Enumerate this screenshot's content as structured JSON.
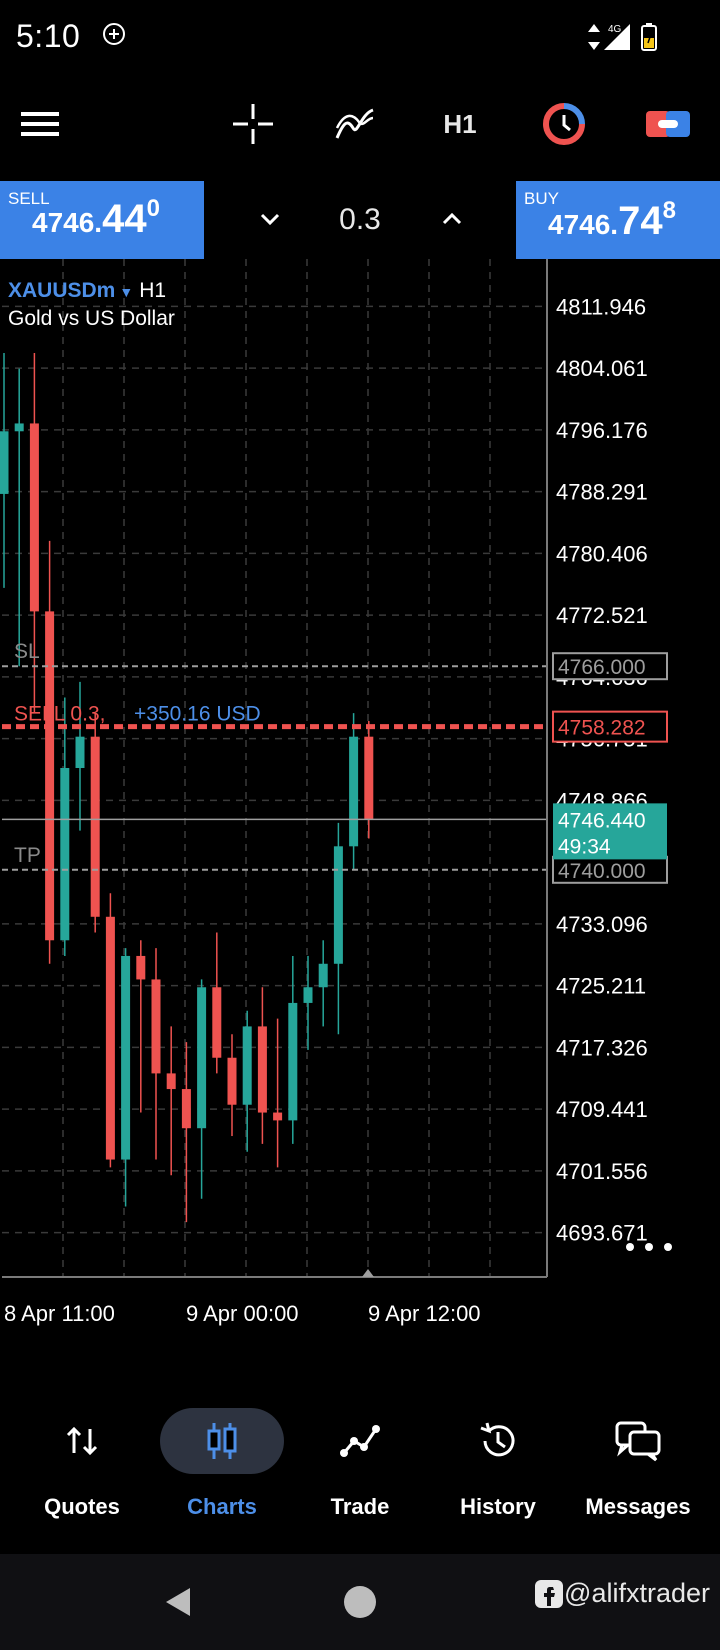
{
  "status": {
    "time": "5:10",
    "network": "4G"
  },
  "toolbar": {
    "timeframe": "H1",
    "icons": [
      "menu-icon",
      "crosshair-icon",
      "indicators-icon",
      "timeframe-button",
      "objects-icon",
      "trade-toggle-icon"
    ]
  },
  "trade": {
    "sell_label": "SELL",
    "sell_small": "4746.",
    "sell_big": "44",
    "sell_sup": "0",
    "buy_label": "BUY",
    "buy_small": "4746.",
    "buy_big": "74",
    "buy_sup": "8",
    "volume": "0.3"
  },
  "symbol": {
    "name": "XAUUSDm",
    "timeframe": "H1",
    "description": "Gold vs US Dollar"
  },
  "chart_data": {
    "type": "candlestick",
    "y_labels": [
      "4811.946",
      "4804.061",
      "4796.176",
      "4788.291",
      "4780.406",
      "4772.521",
      "4764.636",
      "4756.751",
      "4748.866",
      "4733.096",
      "4725.211",
      "4717.326",
      "4709.441",
      "4701.556",
      "4693.671"
    ],
    "x_labels": [
      "8 Apr 11:00",
      "9 Apr 00:00",
      "9 Apr 12:00"
    ],
    "ylim": [
      4688.0,
      4818.0
    ],
    "candles": [
      {
        "o": 4788,
        "h": 4806,
        "l": 4776,
        "c": 4796
      },
      {
        "o": 4796,
        "h": 4804,
        "l": 4766,
        "c": 4797
      },
      {
        "o": 4797,
        "h": 4806,
        "l": 4760,
        "c": 4773
      },
      {
        "o": 4773,
        "h": 4782,
        "l": 4728,
        "c": 4731
      },
      {
        "o": 4731,
        "h": 4762,
        "l": 4729,
        "c": 4753
      },
      {
        "o": 4753,
        "h": 4764,
        "l": 4745,
        "c": 4757
      },
      {
        "o": 4757,
        "h": 4760,
        "l": 4732,
        "c": 4734
      },
      {
        "o": 4734,
        "h": 4737,
        "l": 4702,
        "c": 4703
      },
      {
        "o": 4703,
        "h": 4730,
        "l": 4697,
        "c": 4729
      },
      {
        "o": 4729,
        "h": 4731,
        "l": 4709,
        "c": 4726
      },
      {
        "o": 4726,
        "h": 4730,
        "l": 4703,
        "c": 4714
      },
      {
        "o": 4714,
        "h": 4720,
        "l": 4701,
        "c": 4712
      },
      {
        "o": 4712,
        "h": 4718,
        "l": 4695,
        "c": 4707
      },
      {
        "o": 4707,
        "h": 4726,
        "l": 4698,
        "c": 4725
      },
      {
        "o": 4725,
        "h": 4732,
        "l": 4714,
        "c": 4716
      },
      {
        "o": 4716,
        "h": 4719,
        "l": 4706,
        "c": 4710
      },
      {
        "o": 4710,
        "h": 4722,
        "l": 4704,
        "c": 4720
      },
      {
        "o": 4720,
        "h": 4725,
        "l": 4705,
        "c": 4709
      },
      {
        "o": 4709,
        "h": 4721,
        "l": 4702,
        "c": 4708
      },
      {
        "o": 4708,
        "h": 4729,
        "l": 4705,
        "c": 4723
      },
      {
        "o": 4723,
        "h": 4729,
        "l": 4717,
        "c": 4725
      },
      {
        "o": 4725,
        "h": 4731,
        "l": 4720,
        "c": 4728
      },
      {
        "o": 4728,
        "h": 4746,
        "l": 4719,
        "c": 4743
      },
      {
        "o": 4743,
        "h": 4760,
        "l": 4740,
        "c": 4757
      },
      {
        "o": 4757,
        "h": 4759,
        "l": 4744,
        "c": 4746.44
      }
    ],
    "levels": [
      {
        "name": "SL",
        "price": 4766.0,
        "label": "SL",
        "box": "4766.000"
      },
      {
        "name": "TP",
        "price": 4740.0,
        "label": "TP",
        "box": "4740.000"
      }
    ],
    "order": {
      "label": "SELL 0.3,",
      "profit": "+350.16 USD",
      "price": 4758.282,
      "box": "4758.282"
    },
    "current": {
      "price": 4746.44,
      "box": "4746.440",
      "timer": "49:34"
    },
    "colors": {
      "bull": "#26a69a",
      "bear": "#ef5350",
      "grid": "#3a3a3a",
      "order": "#ef5350",
      "profit": "#4d8fe8"
    }
  },
  "nav": {
    "items": [
      {
        "label": "Quotes",
        "icon": "quotes-icon"
      },
      {
        "label": "Charts",
        "icon": "charts-icon",
        "active": true
      },
      {
        "label": "Trade",
        "icon": "trade-icon"
      },
      {
        "label": "History",
        "icon": "history-icon"
      },
      {
        "label": "Messages",
        "icon": "messages-icon"
      }
    ]
  },
  "watermark": "@alifxtrader"
}
